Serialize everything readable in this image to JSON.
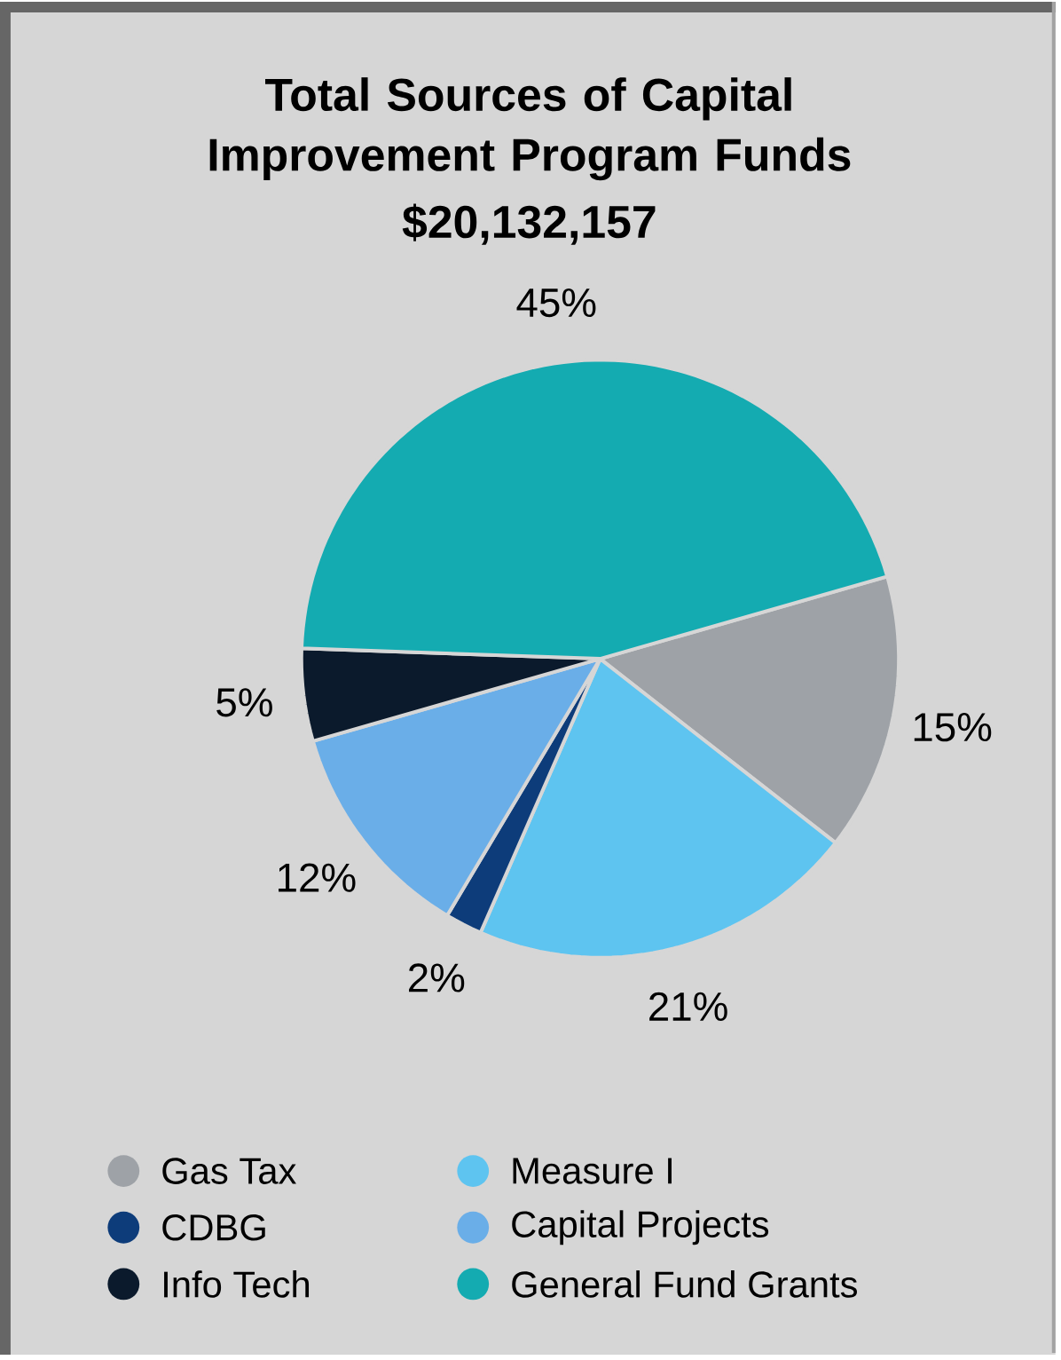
{
  "chart_data": {
    "type": "pie",
    "title": "Total Sources of Capital Improvement Program Funds",
    "subtitle": "$20,132,157",
    "categories": [
      "Gas Tax",
      "Measure I",
      "CDBG",
      "Capital Projects",
      "Info Tech",
      "General Fund Grants"
    ],
    "values": [
      15,
      21,
      2,
      12,
      5,
      45
    ],
    "value_labels": [
      "15%",
      "21%",
      "2%",
      "12%",
      "5%",
      "45%"
    ],
    "colors": [
      "#9ea2a7",
      "#5ec4f0",
      "#0d3c7a",
      "#6aaee8",
      "#0b1a2c",
      "#14abb1"
    ],
    "legend": "bottom"
  }
}
